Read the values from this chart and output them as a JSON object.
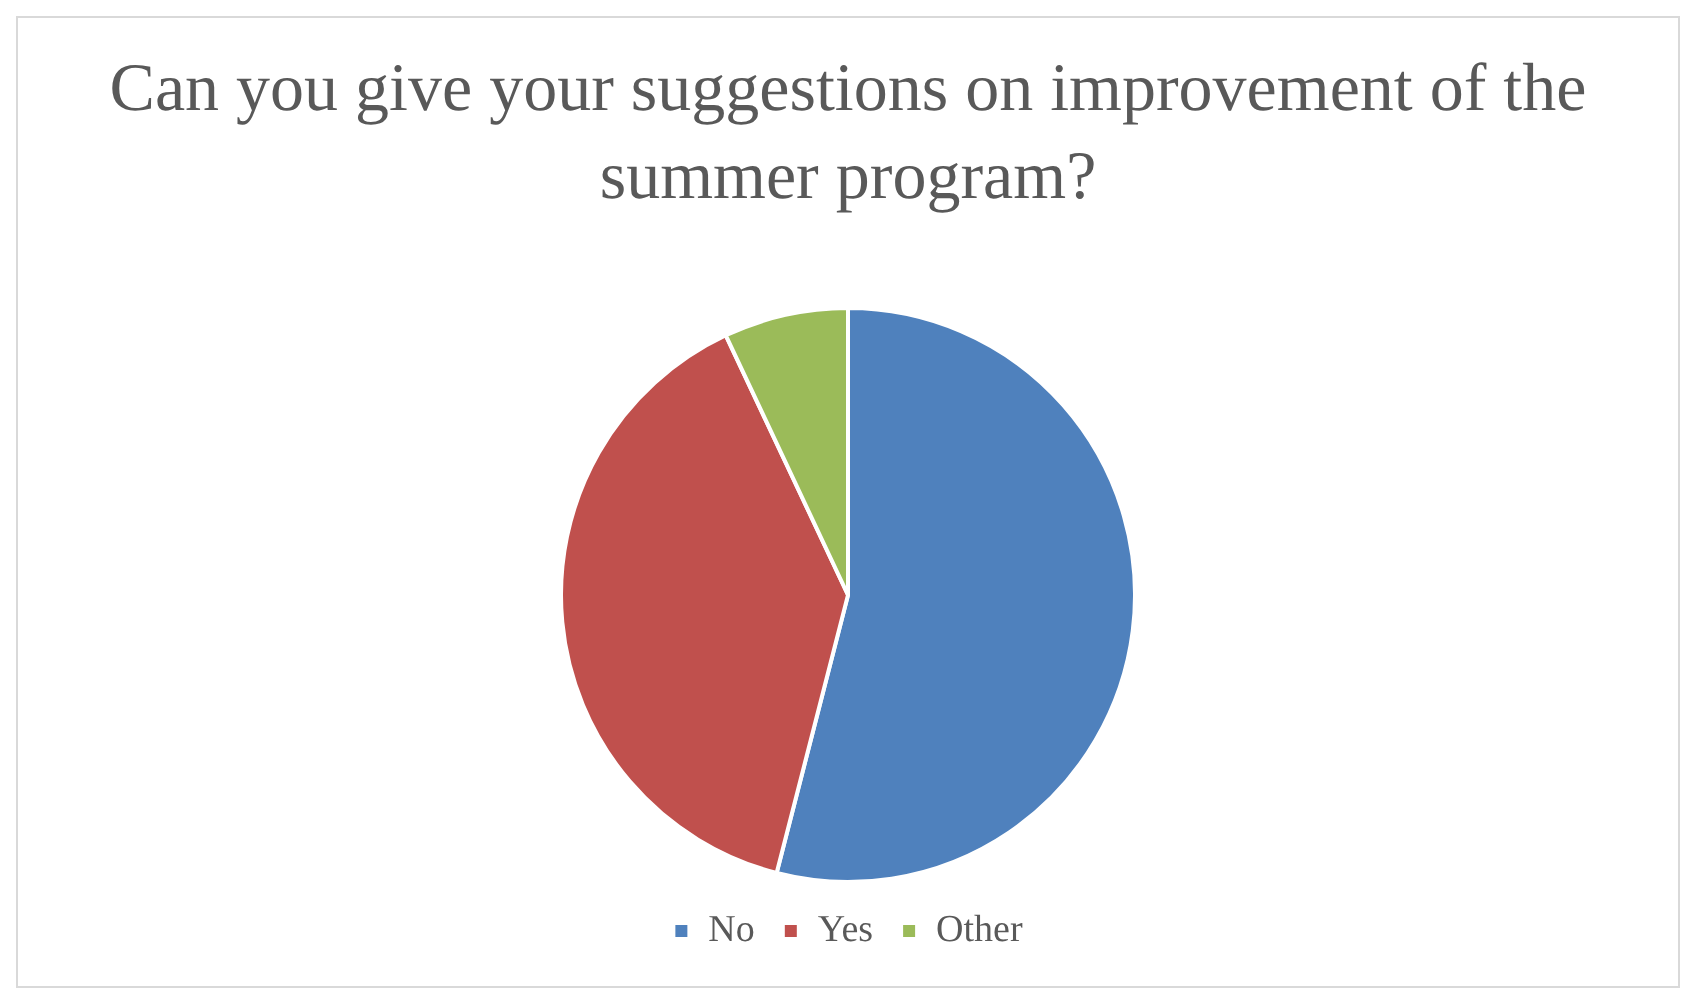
{
  "chart_data": {
    "type": "pie",
    "title": "Can you give your suggestions on improvement of the summer program?",
    "categories": [
      "No",
      "Yes",
      "Other"
    ],
    "values": [
      54,
      39,
      7
    ],
    "colors": [
      "#4f81bd",
      "#c0504d",
      "#9bbb59"
    ],
    "legend": "bottom"
  }
}
